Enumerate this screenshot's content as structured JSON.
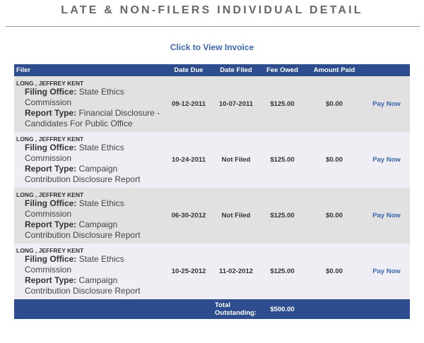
{
  "page": {
    "title": "LATE & NON-FILERS INDIVIDUAL DETAIL",
    "invoice_link": "Click to View Invoice"
  },
  "table": {
    "headers": [
      "Filer",
      "Date Due",
      "Date Filed",
      "Fee Owed",
      "Amount Paid",
      ""
    ],
    "filing_office_label": "Filing Office:",
    "report_type_label": "Report Type:",
    "rows": [
      {
        "filer": "LONG , JEFFREY KENT",
        "filing_office": "State Ethics Commission",
        "report_type": "Financial Disclosure - Candidates For Public Office",
        "date_due": "09-12-2011",
        "date_filed": "10-07-2011",
        "fee_owed": "$125.00",
        "amount_paid": "$0.00",
        "action": "Pay Now"
      },
      {
        "filer": "LONG , JEFFREY KENT",
        "filing_office": "State Ethics Commission",
        "report_type": "Campaign Contribution Disclosure Report",
        "date_due": "10-24-2011",
        "date_filed": "Not Filed",
        "fee_owed": "$125.00",
        "amount_paid": "$0.00",
        "action": "Pay Now"
      },
      {
        "filer": "LONG , JEFFREY KENT",
        "filing_office": "State Ethics Commission",
        "report_type": "Campaign Contribution Disclosure Report",
        "date_due": "06-30-2012",
        "date_filed": "Not Filed",
        "fee_owed": "$125.00",
        "amount_paid": "$0.00",
        "action": "Pay Now"
      },
      {
        "filer": "LONG , JEFFREY KENT",
        "filing_office": "State Ethics Commission",
        "report_type": "Campaign Contribution Disclosure Report",
        "date_due": "10-25-2012",
        "date_filed": "11-02-2012",
        "fee_owed": "$125.00",
        "amount_paid": "$0.00",
        "action": "Pay Now"
      }
    ],
    "total": {
      "label_line1": "Total",
      "label_line2": "Outstanding:",
      "amount": "$500.00"
    }
  },
  "colors": {
    "header_bg": "#2d4d8f",
    "link": "#3b66b0",
    "row_shade": "#e1e1e1",
    "row_light": "#eeeef4"
  }
}
